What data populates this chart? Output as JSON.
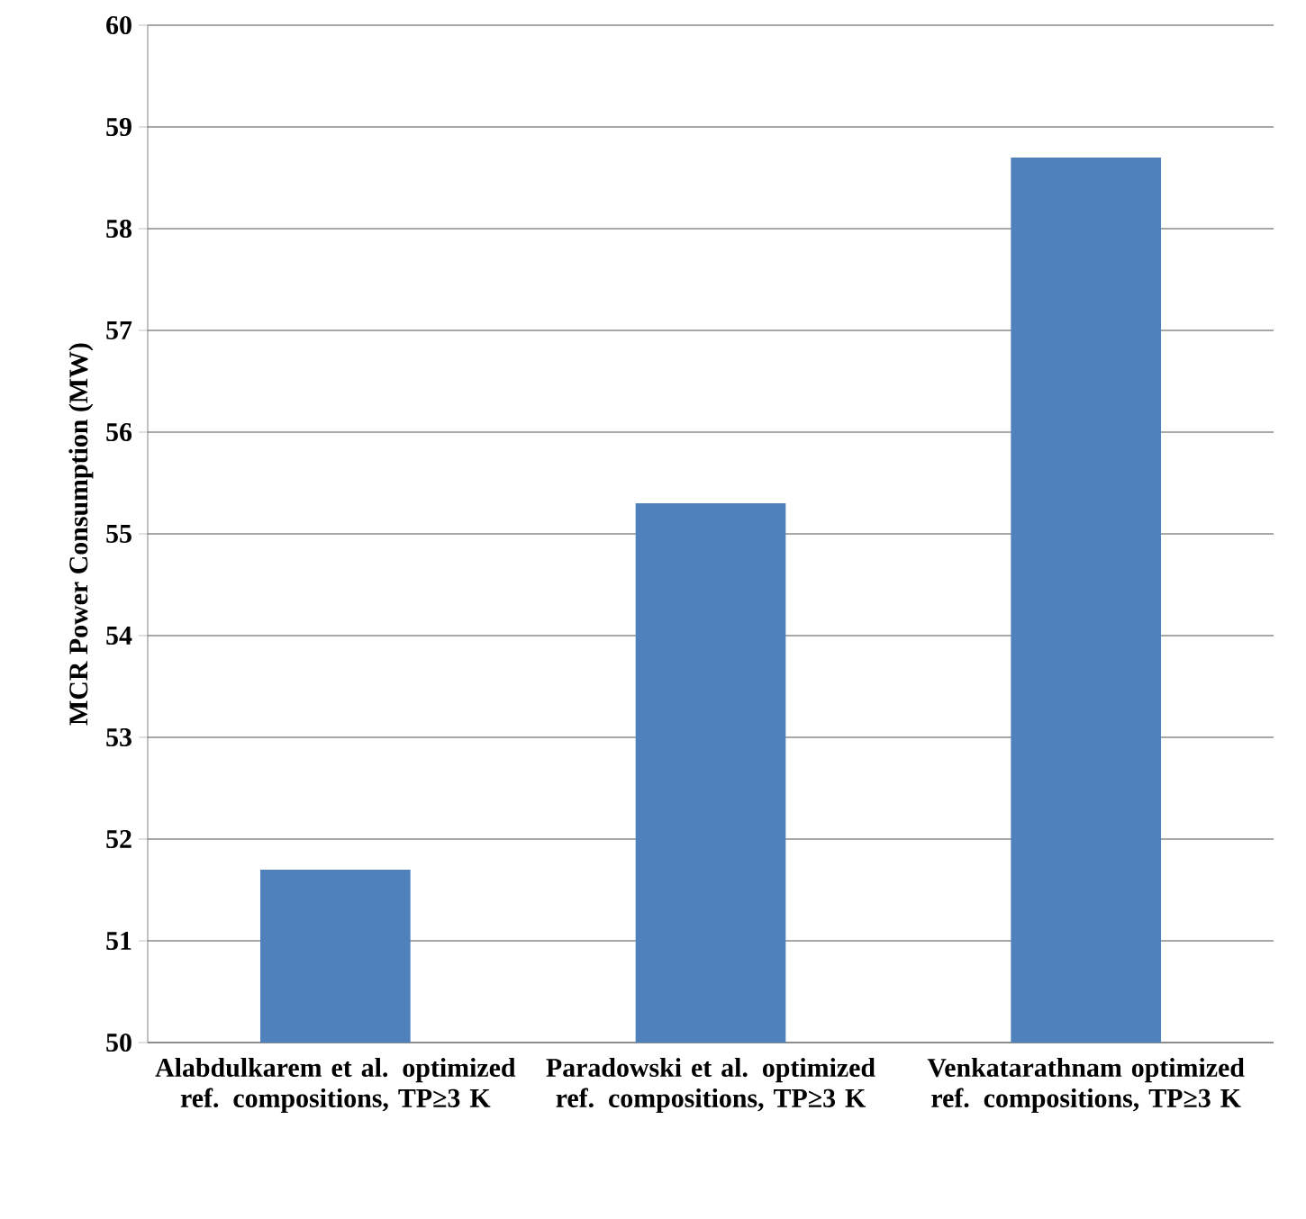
{
  "chart_data": {
    "type": "bar",
    "ylabel": "MCR Power Consumption (MW)",
    "categories": [
      "Alabdulkarem et al. optimized ref. compositions, TP≥3 K",
      "Paradowski et al. optimized ref. compositions, TP≥3 K",
      "Venkatarathnam optimized ref. compositions, TP≥3 K"
    ],
    "values": [
      51.7,
      55.3,
      58.7
    ],
    "color": "#4f81bd",
    "ylim": [
      50,
      60
    ],
    "yticks": [
      50,
      51,
      52,
      53,
      54,
      55,
      56,
      57,
      58,
      59,
      60
    ],
    "grid": "y"
  }
}
